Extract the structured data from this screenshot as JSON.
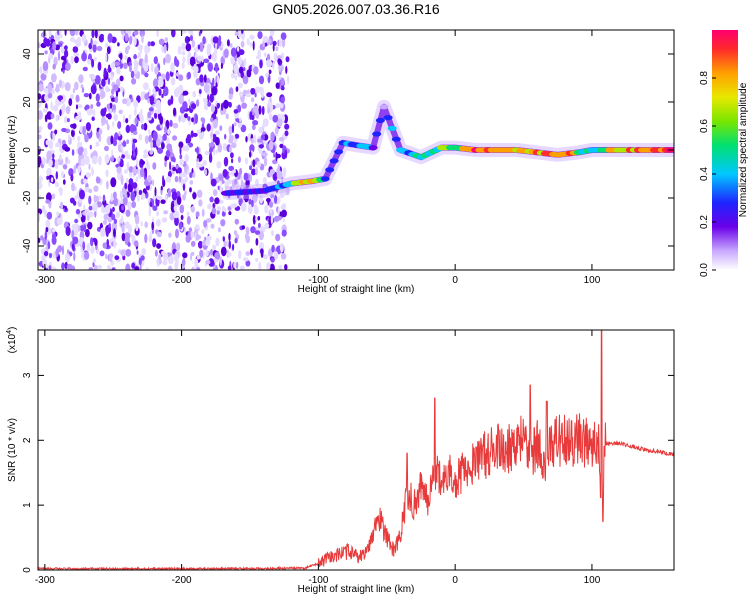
{
  "figure": {
    "title": "GN05.2026.007.03.36.R16"
  },
  "chart_data": [
    {
      "type": "heatmap",
      "xlabel": "Height of straight line (km)",
      "ylabel": "Frequency (Hz)",
      "xlim": [
        -305,
        160
      ],
      "ylim": [
        -50,
        50
      ],
      "x_ticks": [
        -300,
        -200,
        -100,
        0,
        100
      ],
      "y_ticks": [
        -40,
        -20,
        0,
        20,
        40
      ],
      "noise_region_x": [
        -305,
        -122
      ],
      "ridge": [
        {
          "x": -168,
          "y": -18,
          "a": 0.45
        },
        {
          "x": -140,
          "y": -17,
          "a": 0.3
        },
        {
          "x": -120,
          "y": -14,
          "a": 0.55
        },
        {
          "x": -105,
          "y": -13,
          "a": 0.85
        },
        {
          "x": -95,
          "y": -12,
          "a": 0.4
        },
        {
          "x": -82,
          "y": 3,
          "a": 0.55
        },
        {
          "x": -72,
          "y": 2,
          "a": 0.5
        },
        {
          "x": -60,
          "y": 1,
          "a": 0.45
        },
        {
          "x": -52,
          "y": 18,
          "a": 0.25
        },
        {
          "x": -40,
          "y": 0,
          "a": 0.55
        },
        {
          "x": -25,
          "y": -3,
          "a": 0.55
        },
        {
          "x": -10,
          "y": 1,
          "a": 0.7
        },
        {
          "x": 0,
          "y": 1,
          "a": 0.75
        },
        {
          "x": 15,
          "y": 0,
          "a": 1.0
        },
        {
          "x": 30,
          "y": 0,
          "a": 0.8
        },
        {
          "x": 45,
          "y": 0,
          "a": 0.9
        },
        {
          "x": 60,
          "y": -1,
          "a": 0.85
        },
        {
          "x": 75,
          "y": -2,
          "a": 0.95
        },
        {
          "x": 90,
          "y": -1,
          "a": 0.75
        },
        {
          "x": 100,
          "y": 0,
          "a": 0.55
        },
        {
          "x": 110,
          "y": 0,
          "a": 0.8
        },
        {
          "x": 125,
          "y": 0,
          "a": 0.85
        },
        {
          "x": 140,
          "y": 0,
          "a": 0.9
        },
        {
          "x": 160,
          "y": 0,
          "a": 1.0
        }
      ],
      "colorbar": {
        "label": "Normalized spectral amplitude",
        "range": [
          0,
          1
        ],
        "ticks": [
          "0.0",
          "0.2",
          "0.4",
          "0.6",
          "0.8"
        ],
        "tick_values": [
          0.0,
          0.2,
          0.4,
          0.6,
          0.8
        ]
      }
    },
    {
      "type": "line",
      "xlabel": "Height of straight line (km)",
      "ylabel": "SNR (10 * v/v)",
      "y_multiplier": "(x10",
      "y_multiplier_exp": "4",
      "y_multiplier_close": ")",
      "xlim": [
        -305,
        160
      ],
      "ylim": [
        0,
        3.7
      ],
      "x_ticks": [
        -300,
        -200,
        -100,
        0,
        100
      ],
      "y_ticks": [
        0,
        1,
        2,
        3
      ],
      "color": "#e83a3a",
      "series": [
        {
          "x": [
            -305,
            -250,
            -200,
            -150,
            -110,
            -100,
            -95,
            -85,
            -75,
            -70,
            -65,
            -60,
            -55,
            -50,
            -45,
            -40,
            -35,
            -30,
            -25,
            -20,
            -15,
            -10,
            -5,
            0,
            10,
            20,
            30,
            40,
            50,
            55,
            60,
            65,
            70,
            80,
            90,
            100,
            105,
            107,
            110,
            120,
            130,
            140,
            150,
            160
          ],
          "y": [
            0.02,
            0.02,
            0.02,
            0.02,
            0.03,
            0.1,
            0.15,
            0.25,
            0.3,
            0.2,
            0.25,
            0.6,
            0.8,
            0.5,
            0.3,
            0.5,
            1.2,
            1.0,
            1.3,
            1.1,
            1.6,
            1.3,
            1.5,
            1.4,
            1.6,
            1.75,
            1.85,
            1.9,
            2.1,
            1.7,
            2.0,
            1.5,
            2.0,
            2.0,
            2.0,
            2.0,
            2.05,
            1.0,
            1.95,
            1.95,
            1.9,
            1.85,
            1.82,
            1.78
          ]
        }
      ],
      "spikes": [
        {
          "x": -15,
          "y": 2.65
        },
        {
          "x": -35,
          "y": 1.8
        },
        {
          "x": 55,
          "y": 2.85
        },
        {
          "x": 67,
          "y": 2.6
        },
        {
          "x": 107,
          "y": 3.7
        },
        {
          "x": 108,
          "y": 0.75
        },
        {
          "x": 85,
          "y": 2.3
        }
      ]
    }
  ]
}
